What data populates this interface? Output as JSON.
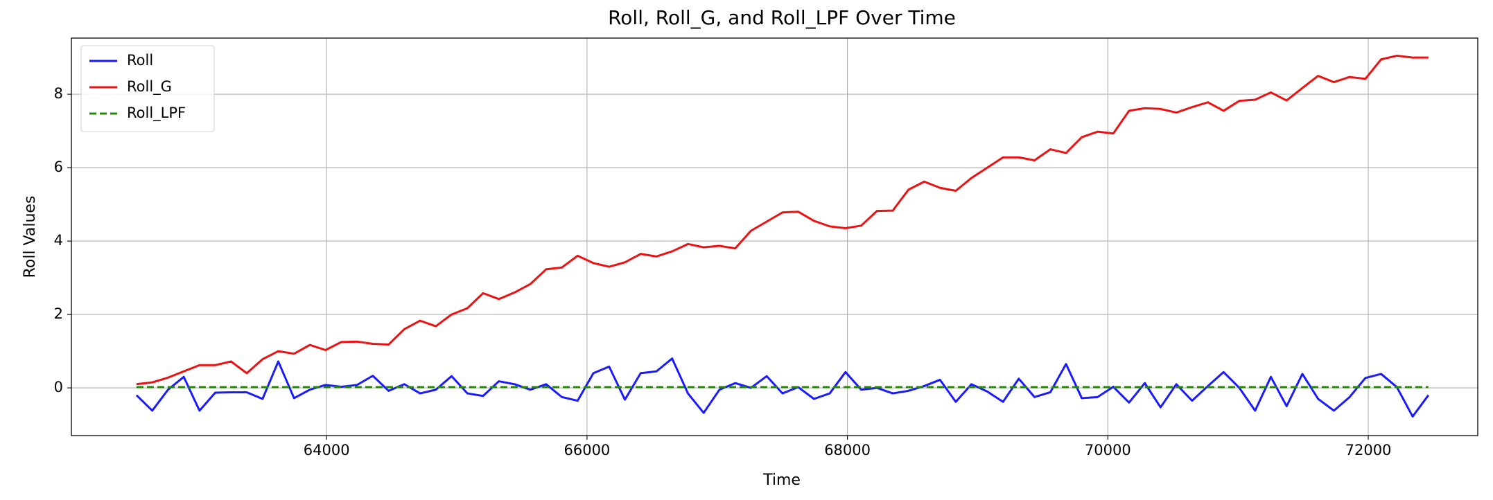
{
  "chart_data": {
    "type": "line",
    "title": "Roll, Roll_G, and Roll_LPF Over Time",
    "xlabel": "Time",
    "ylabel": "Roll Values",
    "x": [
      62540,
      62661,
      62782,
      62903,
      63024,
      63145,
      63266,
      63387,
      63508,
      63629,
      63750,
      63871,
      63992,
      64113,
      64234,
      64355,
      64476,
      64597,
      64718,
      64839,
      64960,
      65081,
      65202,
      65323,
      65444,
      65565,
      65686,
      65807,
      65928,
      66049,
      66170,
      66291,
      66412,
      66533,
      66654,
      66775,
      66896,
      67017,
      67138,
      67259,
      67380,
      67501,
      67622,
      67743,
      67864,
      67985,
      68106,
      68227,
      68348,
      68469,
      68590,
      68711,
      68832,
      68953,
      69074,
      69195,
      69316,
      69437,
      69558,
      69679,
      69800,
      69921,
      70042,
      70163,
      70284,
      70405,
      70526,
      70647,
      70768,
      70889,
      71010,
      71131,
      71252,
      71373,
      71494,
      71615,
      71736,
      71857,
      71978,
      72099,
      72220,
      72341,
      72462
    ],
    "series": [
      {
        "name": "Roll",
        "color": "#1a1aff",
        "dash": false,
        "values": [
          -0.2,
          -0.62,
          -0.05,
          0.3,
          -0.62,
          -0.13,
          -0.12,
          -0.12,
          -0.3,
          0.72,
          -0.28,
          -0.05,
          0.08,
          0.03,
          0.08,
          0.33,
          -0.08,
          0.1,
          -0.15,
          -0.05,
          0.32,
          -0.15,
          -0.22,
          0.18,
          0.1,
          -0.05,
          0.1,
          -0.25,
          -0.35,
          0.4,
          0.58,
          -0.32,
          0.4,
          0.45,
          0.8,
          -0.15,
          -0.68,
          -0.05,
          0.13,
          0.0,
          0.32,
          -0.15,
          0.02,
          -0.3,
          -0.15,
          0.43,
          -0.05,
          0.0,
          -0.15,
          -0.08,
          0.05,
          0.22,
          -0.38,
          0.1,
          -0.1,
          -0.38,
          0.25,
          -0.25,
          -0.12,
          0.65,
          -0.28,
          -0.25,
          0.03,
          -0.4,
          0.13,
          -0.53,
          0.1,
          -0.35,
          0.05,
          0.43,
          0.0,
          -0.62,
          0.3,
          -0.5,
          0.38,
          -0.3,
          -0.62,
          -0.25,
          0.27,
          0.38,
          0.02,
          -0.78,
          -0.2
        ]
      },
      {
        "name": "Roll_G",
        "color": "#ee1111",
        "dash": false,
        "values": [
          0.1,
          0.15,
          0.28,
          0.45,
          0.62,
          0.62,
          0.72,
          0.4,
          0.78,
          1.0,
          0.93,
          1.17,
          1.03,
          1.25,
          1.26,
          1.2,
          1.18,
          1.6,
          1.83,
          1.68,
          2.0,
          2.17,
          2.58,
          2.42,
          2.6,
          2.83,
          3.23,
          3.28,
          3.6,
          3.4,
          3.3,
          3.42,
          3.65,
          3.58,
          3.72,
          3.92,
          3.83,
          3.87,
          3.8,
          4.28,
          4.53,
          4.78,
          4.8,
          4.55,
          4.4,
          4.35,
          4.42,
          4.82,
          4.83,
          5.4,
          5.62,
          5.45,
          5.37,
          5.72,
          6.0,
          6.28,
          6.28,
          6.2,
          6.5,
          6.4,
          6.83,
          6.98,
          6.93,
          7.55,
          7.62,
          7.6,
          7.5,
          7.65,
          7.78,
          7.55,
          7.82,
          7.85,
          8.05,
          7.83,
          8.17,
          8.5,
          8.33,
          8.47,
          8.42,
          8.95,
          9.05,
          9.0,
          9.0
        ]
      },
      {
        "name": "Roll_LPF",
        "color": "#228b00",
        "dash": true,
        "values": [
          0.02,
          0.02,
          0.02,
          0.02,
          0.02,
          0.02,
          0.02,
          0.02,
          0.02,
          0.02,
          0.02,
          0.02,
          0.02,
          0.02,
          0.02,
          0.02,
          0.02,
          0.02,
          0.02,
          0.02,
          0.02,
          0.02,
          0.02,
          0.02,
          0.02,
          0.02,
          0.02,
          0.02,
          0.02,
          0.02,
          0.02,
          0.02,
          0.02,
          0.02,
          0.02,
          0.02,
          0.02,
          0.02,
          0.02,
          0.02,
          0.02,
          0.02,
          0.02,
          0.02,
          0.02,
          0.02,
          0.02,
          0.02,
          0.02,
          0.02,
          0.02,
          0.02,
          0.02,
          0.02,
          0.02,
          0.02,
          0.02,
          0.02,
          0.02,
          0.02,
          0.02,
          0.02,
          0.02,
          0.02,
          0.02,
          0.02,
          0.02,
          0.02,
          0.02,
          0.02,
          0.02,
          0.02,
          0.02,
          0.02,
          0.02,
          0.02,
          0.02,
          0.02,
          0.02,
          0.02,
          0.02,
          0.02,
          0.02
        ]
      }
    ],
    "xlim": [
      62040,
      72841
    ],
    "xticks": [
      64000,
      66000,
      68000,
      70000,
      72000
    ],
    "ylim": [
      -1.3,
      9.53
    ],
    "yticks": [
      0,
      2,
      4,
      6,
      8
    ],
    "grid": true,
    "legend": "upper left"
  }
}
